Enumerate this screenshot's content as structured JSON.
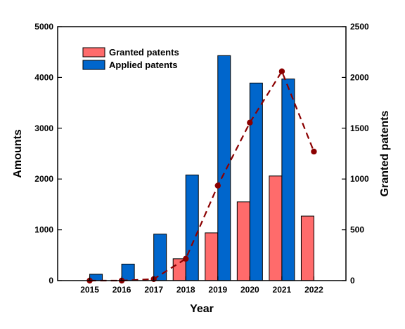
{
  "chart_data": {
    "type": "bar",
    "categories": [
      "2015",
      "2016",
      "2017",
      "2018",
      "2019",
      "2020",
      "2021",
      "2022"
    ],
    "xlabel": "Year",
    "ylabel": "Amounts",
    "y2label": "Granted patents",
    "ylim": [
      0,
      5000
    ],
    "y2lim": [
      0,
      2500
    ],
    "yticks": [
      "0",
      "1000",
      "2000",
      "3000",
      "4000",
      "5000"
    ],
    "y2ticks": [
      "0",
      "500",
      "1000",
      "1500",
      "2000",
      "2500"
    ],
    "legend_position": "top-left",
    "grid": false,
    "series": [
      {
        "name": "Granted patents",
        "axis": "left",
        "color": "#ff6b6b",
        "values": [
          0,
          0,
          0,
          430,
          940,
          1550,
          2060,
          1270
        ]
      },
      {
        "name": "Applied patents",
        "axis": "left",
        "color": "#0066cc",
        "values": [
          125,
          325,
          915,
          2080,
          4430,
          3890,
          3970,
          null
        ]
      }
    ],
    "trend_line": {
      "axis": "right",
      "color": "#8b0000",
      "style": "dashed",
      "values": [
        0,
        0,
        15,
        215,
        935,
        1555,
        2060,
        1270
      ]
    }
  }
}
